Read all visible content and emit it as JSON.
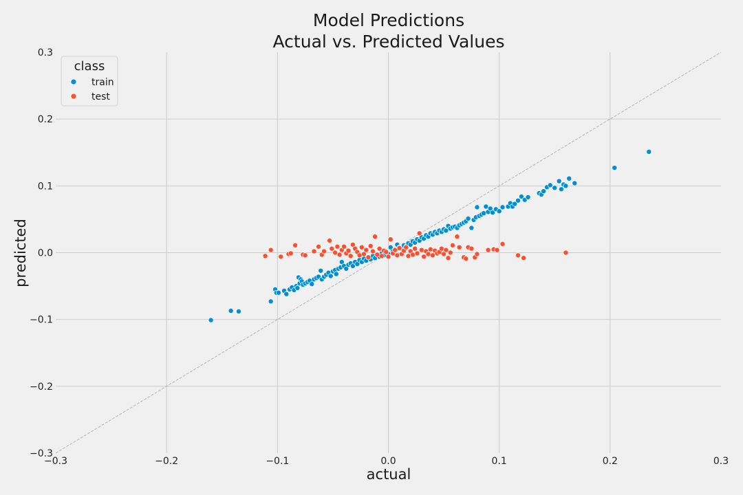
{
  "chart_data": {
    "type": "scatter",
    "title_line1": "Model Predictions",
    "title_line2": "Actual vs. Predicted Values",
    "xlabel": "actual",
    "ylabel": "predicted",
    "xlim": [
      -0.3,
      0.3
    ],
    "ylim": [
      -0.3,
      0.3
    ],
    "xticks": [
      -0.3,
      -0.2,
      -0.1,
      0.0,
      0.1,
      0.2,
      0.3
    ],
    "yticks": [
      -0.3,
      -0.2,
      -0.1,
      0.0,
      0.1,
      0.2,
      0.3
    ],
    "xtick_labels": [
      "−0.3",
      "−0.2",
      "−0.1",
      "0.0",
      "0.1",
      "0.2",
      "0.3"
    ],
    "ytick_labels": [
      "−0.3",
      "−0.2",
      "−0.1",
      "0.0",
      "0.1",
      "0.2",
      "0.3"
    ],
    "grid": true,
    "reference_line": "y = x",
    "legend": {
      "title": "class",
      "placement": "top-left"
    },
    "series": [
      {
        "name": "train",
        "color": "#008fd5",
        "points": [
          [
            -0.16,
            -0.101
          ],
          [
            -0.142,
            -0.087
          ],
          [
            -0.135,
            -0.088
          ],
          [
            -0.106,
            -0.073
          ],
          [
            -0.102,
            -0.055
          ],
          [
            -0.101,
            -0.06
          ],
          [
            -0.099,
            -0.06
          ],
          [
            -0.094,
            -0.057
          ],
          [
            -0.092,
            -0.062
          ],
          [
            -0.089,
            -0.055
          ],
          [
            -0.087,
            -0.052
          ],
          [
            -0.085,
            -0.056
          ],
          [
            -0.083,
            -0.05
          ],
          [
            -0.082,
            -0.053
          ],
          [
            -0.081,
            -0.037
          ],
          [
            -0.08,
            -0.046
          ],
          [
            -0.079,
            -0.04
          ],
          [
            -0.078,
            -0.043
          ],
          [
            -0.077,
            -0.048
          ],
          [
            -0.075,
            -0.046
          ],
          [
            -0.073,
            -0.044
          ],
          [
            -0.071,
            -0.042
          ],
          [
            -0.069,
            -0.047
          ],
          [
            -0.067,
            -0.04
          ],
          [
            -0.065,
            -0.038
          ],
          [
            -0.063,
            -0.036
          ],
          [
            -0.061,
            -0.027
          ],
          [
            -0.06,
            -0.04
          ],
          [
            -0.058,
            -0.036
          ],
          [
            -0.056,
            -0.033
          ],
          [
            -0.054,
            -0.03
          ],
          [
            -0.052,
            -0.035
          ],
          [
            -0.05,
            -0.028
          ],
          [
            -0.048,
            -0.026
          ],
          [
            -0.047,
            -0.032
          ],
          [
            -0.045,
            -0.024
          ],
          [
            -0.043,
            -0.022
          ],
          [
            -0.042,
            -0.014
          ],
          [
            -0.04,
            -0.02
          ],
          [
            -0.038,
            -0.024
          ],
          [
            -0.036,
            -0.018
          ],
          [
            -0.034,
            -0.016
          ],
          [
            -0.032,
            -0.02
          ],
          [
            -0.03,
            -0.014
          ],
          [
            -0.028,
            -0.017
          ],
          [
            -0.026,
            -0.011
          ],
          [
            -0.024,
            -0.014
          ],
          [
            -0.022,
            -0.009
          ],
          [
            -0.02,
            -0.012
          ],
          [
            -0.018,
            -0.007
          ],
          [
            -0.016,
            -0.01
          ],
          [
            -0.014,
            -0.005
          ],
          [
            -0.012,
            -0.008
          ],
          [
            -0.01,
            -0.003
          ],
          [
            -0.008,
            -0.006
          ],
          [
            -0.006,
            -0.001
          ],
          [
            -0.004,
            -0.004
          ],
          [
            -0.002,
            0.002
          ],
          [
            0.0,
            -0.002
          ],
          [
            0.002,
            0.008
          ],
          [
            0.004,
            0.002
          ],
          [
            0.006,
            0.005
          ],
          [
            0.008,
            0.012
          ],
          [
            0.01,
            0.008
          ],
          [
            0.012,
            0.006
          ],
          [
            0.014,
            0.011
          ],
          [
            0.016,
            0.009
          ],
          [
            0.018,
            0.014
          ],
          [
            0.02,
            0.012
          ],
          [
            0.022,
            0.017
          ],
          [
            0.024,
            0.015
          ],
          [
            0.026,
            0.02
          ],
          [
            0.028,
            0.018
          ],
          [
            0.03,
            0.023
          ],
          [
            0.032,
            0.021
          ],
          [
            0.034,
            0.026
          ],
          [
            0.036,
            0.024
          ],
          [
            0.038,
            0.029
          ],
          [
            0.04,
            0.027
          ],
          [
            0.042,
            0.031
          ],
          [
            0.044,
            0.029
          ],
          [
            0.046,
            0.033
          ],
          [
            0.048,
            0.031
          ],
          [
            0.05,
            0.035
          ],
          [
            0.052,
            0.033
          ],
          [
            0.054,
            0.04
          ],
          [
            0.056,
            0.036
          ],
          [
            0.058,
            0.038
          ],
          [
            0.06,
            0.039
          ],
          [
            0.062,
            0.037
          ],
          [
            0.064,
            0.041
          ],
          [
            0.066,
            0.043
          ],
          [
            0.068,
            0.045
          ],
          [
            0.07,
            0.047
          ],
          [
            0.072,
            0.051
          ],
          [
            0.075,
            0.037
          ],
          [
            0.077,
            0.049
          ],
          [
            0.079,
            0.053
          ],
          [
            0.08,
            0.068
          ],
          [
            0.082,
            0.055
          ],
          [
            0.084,
            0.057
          ],
          [
            0.086,
            0.059
          ],
          [
            0.088,
            0.069
          ],
          [
            0.09,
            0.061
          ],
          [
            0.092,
            0.066
          ],
          [
            0.094,
            0.06
          ],
          [
            0.097,
            0.065
          ],
          [
            0.1,
            0.062
          ],
          [
            0.103,
            0.068
          ],
          [
            0.108,
            0.069
          ],
          [
            0.11,
            0.074
          ],
          [
            0.112,
            0.069
          ],
          [
            0.114,
            0.073
          ],
          [
            0.117,
            0.078
          ],
          [
            0.12,
            0.084
          ],
          [
            0.123,
            0.079
          ],
          [
            0.126,
            0.083
          ],
          [
            0.136,
            0.089
          ],
          [
            0.138,
            0.087
          ],
          [
            0.14,
            0.092
          ],
          [
            0.143,
            0.098
          ],
          [
            0.146,
            0.101
          ],
          [
            0.15,
            0.097
          ],
          [
            0.154,
            0.107
          ],
          [
            0.156,
            0.095
          ],
          [
            0.158,
            0.102
          ],
          [
            0.16,
            0.1
          ],
          [
            0.163,
            0.111
          ],
          [
            0.168,
            0.104
          ],
          [
            0.204,
            0.127
          ],
          [
            0.235,
            0.151
          ]
        ]
      },
      {
        "name": "test",
        "color": "#fc4f30",
        "points": [
          [
            -0.111,
            -0.005
          ],
          [
            -0.106,
            0.004
          ],
          [
            -0.097,
            -0.006
          ],
          [
            -0.09,
            -0.002
          ],
          [
            -0.088,
            -0.001
          ],
          [
            -0.084,
            0.011
          ],
          [
            -0.077,
            -0.003
          ],
          [
            -0.075,
            -0.004
          ],
          [
            -0.067,
            0.002
          ],
          [
            -0.063,
            0.009
          ],
          [
            -0.06,
            -0.003
          ],
          [
            -0.058,
            0.002
          ],
          [
            -0.053,
            0.018
          ],
          [
            -0.051,
            0.006
          ],
          [
            -0.048,
            0.0
          ],
          [
            -0.046,
            0.009
          ],
          [
            -0.044,
            -0.003
          ],
          [
            -0.042,
            0.004
          ],
          [
            -0.04,
            0.009
          ],
          [
            -0.038,
            -0.001
          ],
          [
            -0.036,
            0.003
          ],
          [
            -0.034,
            -0.005
          ],
          [
            -0.032,
            0.012
          ],
          [
            -0.03,
            0.006
          ],
          [
            -0.028,
            0.001
          ],
          [
            -0.026,
            -0.004
          ],
          [
            -0.024,
            0.008
          ],
          [
            -0.022,
            -0.002
          ],
          [
            -0.02,
            0.004
          ],
          [
            -0.018,
            -0.007
          ],
          [
            -0.016,
            0.01
          ],
          [
            -0.014,
            0.002
          ],
          [
            -0.012,
            0.024
          ],
          [
            -0.01,
            -0.003
          ],
          [
            -0.008,
            0.006
          ],
          [
            -0.006,
            -0.005
          ],
          [
            -0.004,
            0.003
          ],
          [
            -0.002,
            0.001
          ],
          [
            0.0,
            -0.006
          ],
          [
            0.002,
            0.02
          ],
          [
            0.004,
            -0.001
          ],
          [
            0.006,
            0.004
          ],
          [
            0.008,
            -0.004
          ],
          [
            0.01,
            0.007
          ],
          [
            0.012,
            -0.002
          ],
          [
            0.014,
            0.003
          ],
          [
            0.016,
            0.008
          ],
          [
            0.018,
            -0.005
          ],
          [
            0.02,
            0.002
          ],
          [
            0.022,
            -0.003
          ],
          [
            0.024,
            0.006
          ],
          [
            0.026,
            -0.001
          ],
          [
            0.028,
            0.029
          ],
          [
            0.03,
            0.004
          ],
          [
            0.032,
            -0.006
          ],
          [
            0.034,
            0.002
          ],
          [
            0.036,
            -0.002
          ],
          [
            0.038,
            0.005
          ],
          [
            0.04,
            -0.004
          ],
          [
            0.042,
            0.003
          ],
          [
            0.044,
            -0.001
          ],
          [
            0.046,
            0.001
          ],
          [
            0.048,
            0.006
          ],
          [
            0.05,
            -0.002
          ],
          [
            0.052,
            0.004
          ],
          [
            0.054,
            -0.008
          ],
          [
            0.056,
            0.0
          ],
          [
            0.058,
            0.011
          ],
          [
            0.062,
            0.024
          ],
          [
            0.064,
            0.008
          ],
          [
            0.068,
            -0.007
          ],
          [
            0.07,
            -0.009
          ],
          [
            0.072,
            0.008
          ],
          [
            0.075,
            0.006
          ],
          [
            0.078,
            -0.007
          ],
          [
            0.08,
            -0.002
          ],
          [
            0.09,
            0.004
          ],
          [
            0.095,
            0.005
          ],
          [
            0.098,
            0.004
          ],
          [
            0.103,
            0.013
          ],
          [
            0.117,
            -0.004
          ],
          [
            0.122,
            -0.008
          ],
          [
            0.16,
            0.0
          ]
        ]
      }
    ]
  }
}
